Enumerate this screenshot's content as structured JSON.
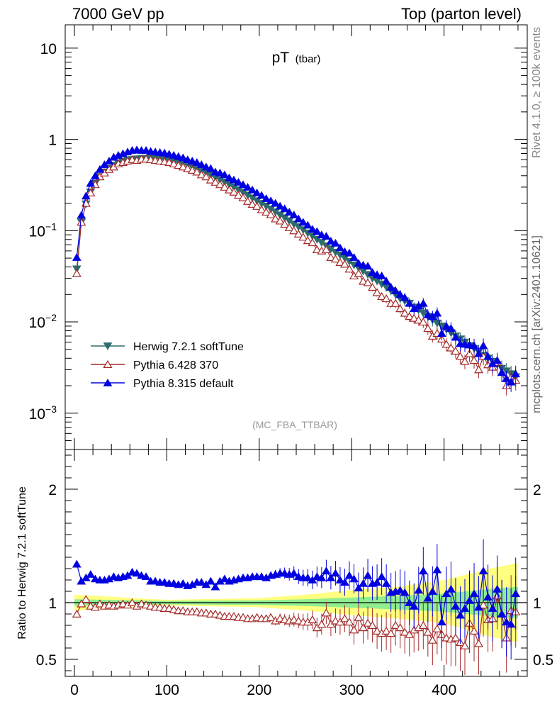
{
  "header": {
    "left": "7000 GeV pp",
    "right": "Top (parton level)"
  },
  "side_labels": {
    "rivet": "Rivet 4.1.0, ≥ 100k events",
    "mcplots": "mcplots.cern.ch [arXiv:2401.10621]"
  },
  "colors": {
    "herwig": "#2f6b6b",
    "pythia6": "#a52a2a",
    "pythia8": "#0000e0",
    "band_inner": "#90ee90",
    "band_outer": "#ffff80"
  },
  "chart_data": [
    {
      "type": "line",
      "panel": "main",
      "title": "pT",
      "title_sub": "(tbar)",
      "watermark": "(MC_FBA_TTBAR)",
      "yscale": "log",
      "ylim": [
        0.0004,
        18
      ],
      "xlim": [
        -10,
        490
      ],
      "ytick_labels": [
        {
          "value": 10,
          "base": "10",
          "exp": ""
        },
        {
          "value": 1,
          "base": "1",
          "exp": ""
        },
        {
          "value": 0.1,
          "base": "10",
          "exp": "−1"
        },
        {
          "value": 0.01,
          "base": "10",
          "exp": "−2"
        },
        {
          "value": 0.001,
          "base": "10",
          "exp": "−3"
        }
      ],
      "x": [
        2.5,
        7.5,
        12.5,
        17.5,
        22.5,
        27.5,
        32.5,
        37.5,
        42.5,
        47.5,
        52.5,
        57.5,
        62.5,
        67.5,
        72.5,
        77.5,
        82.5,
        87.5,
        92.5,
        97.5,
        102.5,
        107.5,
        112.5,
        117.5,
        122.5,
        127.5,
        132.5,
        137.5,
        142.5,
        147.5,
        152.5,
        157.5,
        162.5,
        167.5,
        172.5,
        177.5,
        182.5,
        187.5,
        192.5,
        197.5,
        202.5,
        207.5,
        212.5,
        217.5,
        222.5,
        227.5,
        232.5,
        237.5,
        242.5,
        247.5,
        252.5,
        257.5,
        262.5,
        267.5,
        272.5,
        277.5,
        282.5,
        287.5,
        292.5,
        297.5,
        302.5,
        307.5,
        312.5,
        317.5,
        322.5,
        327.5,
        332.5,
        337.5,
        342.5,
        347.5,
        352.5,
        357.5,
        362.5,
        367.5,
        372.5,
        377.5,
        382.5,
        387.5,
        392.5,
        397.5,
        402.5,
        407.5,
        412.5,
        417.5,
        422.5,
        427.5,
        432.5,
        437.5,
        442.5,
        447.5,
        452.5,
        457.5,
        462.5,
        467.5,
        472.5,
        477.5
      ],
      "series": [
        {
          "name": "Herwig 7.2.1 softTune",
          "marker": "triangle-down",
          "values": [
            0.038,
            0.124,
            0.196,
            0.265,
            0.33,
            0.39,
            0.44,
            0.48,
            0.52,
            0.55,
            0.57,
            0.59,
            0.6,
            0.61,
            0.615,
            0.62,
            0.62,
            0.615,
            0.61,
            0.6,
            0.59,
            0.575,
            0.56,
            0.54,
            0.52,
            0.5,
            0.475,
            0.45,
            0.43,
            0.405,
            0.385,
            0.36,
            0.34,
            0.32,
            0.3,
            0.28,
            0.263,
            0.245,
            0.228,
            0.212,
            0.198,
            0.185,
            0.172,
            0.16,
            0.148,
            0.138,
            0.128,
            0.118,
            0.11,
            0.102,
            0.094,
            0.087,
            0.08,
            0.074,
            0.068,
            0.063,
            0.058,
            0.054,
            0.05,
            0.046,
            0.042,
            0.039,
            0.036,
            0.033,
            0.03,
            0.028,
            0.026,
            0.024,
            0.022,
            0.02,
            0.018,
            0.017,
            0.016,
            0.0145,
            0.0135,
            0.0125,
            0.0115,
            0.0105,
            0.0097,
            0.009,
            0.0083,
            0.0076,
            0.007,
            0.0065,
            0.006,
            0.0055,
            0.0051,
            0.0047,
            0.0043,
            0.004,
            0.0037,
            0.0034,
            0.0031,
            0.0029,
            0.0027,
            0.0025
          ]
        },
        {
          "name": "Pythia 6.428 370",
          "marker": "triangle-up-open",
          "values": [
            0.034,
            0.124,
            0.2,
            0.26,
            0.32,
            0.39,
            0.43,
            0.47,
            0.5,
            0.54,
            0.56,
            0.58,
            0.6,
            0.59,
            0.61,
            0.61,
            0.6,
            0.59,
            0.58,
            0.57,
            0.56,
            0.54,
            0.52,
            0.5,
            0.48,
            0.46,
            0.44,
            0.41,
            0.39,
            0.36,
            0.34,
            0.32,
            0.3,
            0.28,
            0.265,
            0.245,
            0.23,
            0.21,
            0.195,
            0.185,
            0.17,
            0.16,
            0.15,
            0.135,
            0.128,
            0.118,
            0.108,
            0.1,
            0.092,
            0.085,
            0.078,
            0.074,
            0.062,
            0.06,
            0.062,
            0.051,
            0.049,
            0.045,
            0.043,
            0.038,
            0.032,
            0.034,
            0.028,
            0.027,
            0.024,
            0.021,
            0.019,
            0.018,
            0.016,
            0.016,
            0.014,
            0.0125,
            0.0115,
            0.011,
            0.0105,
            0.01,
            0.0085,
            0.007,
            0.0075,
            0.0065,
            0.0057,
            0.0052,
            0.0048,
            0.0042,
            0.0037,
            0.0045,
            0.0038,
            0.003,
            0.0042,
            0.0034,
            0.0032,
            0.0036,
            0.0028,
            0.002,
            0.0025,
            0.0023
          ]
        },
        {
          "name": "Pythia 8.315 default",
          "marker": "triangle-up",
          "values": [
            0.051,
            0.148,
            0.24,
            0.33,
            0.4,
            0.47,
            0.53,
            0.58,
            0.64,
            0.67,
            0.7,
            0.73,
            0.76,
            0.77,
            0.76,
            0.76,
            0.74,
            0.73,
            0.72,
            0.71,
            0.69,
            0.67,
            0.65,
            0.63,
            0.6,
            0.58,
            0.56,
            0.53,
            0.5,
            0.48,
            0.44,
            0.43,
            0.41,
            0.38,
            0.36,
            0.34,
            0.32,
            0.3,
            0.28,
            0.26,
            0.244,
            0.225,
            0.213,
            0.2,
            0.186,
            0.174,
            0.16,
            0.149,
            0.135,
            0.124,
            0.115,
            0.104,
            0.098,
            0.09,
            0.087,
            0.077,
            0.073,
            0.065,
            0.059,
            0.057,
            0.051,
            0.044,
            0.042,
            0.041,
            0.035,
            0.033,
            0.032,
            0.028,
            0.024,
            0.022,
            0.02,
            0.0185,
            0.016,
            0.014,
            0.015,
            0.016,
            0.012,
            0.0115,
            0.0125,
            0.0075,
            0.009,
            0.0085,
            0.0068,
            0.0058,
            0.0057,
            0.0056,
            0.0055,
            0.0045,
            0.0055,
            0.0042,
            0.0035,
            0.0038,
            0.0028,
            0.0024,
            0.0022,
            0.0027
          ]
        }
      ]
    },
    {
      "type": "line",
      "panel": "ratio",
      "ylabel": "Ratio to Herwig 7.2.1 softTune",
      "ylim": [
        0.35,
        2.35
      ],
      "xlim": [
        -10,
        490
      ],
      "xtick_labels": [
        "0",
        "100",
        "200",
        "300",
        "400"
      ],
      "ytick_labels": [
        "2",
        "1",
        "0.5"
      ],
      "reference_line": 1,
      "series": [
        {
          "name": "Pythia 6.428 370",
          "values": [
            0.9,
            0.99,
            1.03,
            0.97,
            0.96,
            0.99,
            0.97,
            0.98,
            0.97,
            0.98,
            0.99,
            0.98,
            1.0,
            0.97,
            0.99,
            0.98,
            0.97,
            0.96,
            0.96,
            0.95,
            0.95,
            0.94,
            0.93,
            0.93,
            0.92,
            0.92,
            0.92,
            0.91,
            0.91,
            0.9,
            0.9,
            0.89,
            0.88,
            0.88,
            0.88,
            0.87,
            0.87,
            0.86,
            0.86,
            0.87,
            0.86,
            0.86,
            0.87,
            0.84,
            0.86,
            0.85,
            0.84,
            0.85,
            0.84,
            0.83,
            0.83,
            0.85,
            0.78,
            0.81,
            0.91,
            0.81,
            0.84,
            0.83,
            0.86,
            0.83,
            0.76,
            0.87,
            0.78,
            0.82,
            0.8,
            0.75,
            0.73,
            0.75,
            0.73,
            0.8,
            0.78,
            0.74,
            0.72,
            0.76,
            0.78,
            0.8,
            0.74,
            0.67,
            0.77,
            0.72,
            0.69,
            0.68,
            0.69,
            0.65,
            0.62,
            0.82,
            0.75,
            0.64,
            0.98,
            0.85,
            0.86,
            1.06,
            0.9,
            0.69,
            0.93,
            0.92
          ]
        },
        {
          "name": "Pythia 8.315 default",
          "values": [
            1.34,
            1.19,
            1.22,
            1.25,
            1.21,
            1.2,
            1.2,
            1.21,
            1.23,
            1.22,
            1.23,
            1.24,
            1.27,
            1.26,
            1.24,
            1.23,
            1.19,
            1.19,
            1.18,
            1.18,
            1.17,
            1.17,
            1.16,
            1.17,
            1.15,
            1.16,
            1.18,
            1.18,
            1.16,
            1.19,
            1.14,
            1.19,
            1.21,
            1.19,
            1.2,
            1.21,
            1.22,
            1.22,
            1.23,
            1.23,
            1.23,
            1.22,
            1.24,
            1.25,
            1.26,
            1.26,
            1.25,
            1.26,
            1.23,
            1.22,
            1.22,
            1.2,
            1.23,
            1.22,
            1.28,
            1.22,
            1.26,
            1.2,
            1.18,
            1.24,
            1.21,
            1.13,
            1.17,
            1.24,
            1.17,
            1.18,
            1.23,
            1.17,
            1.09,
            1.1,
            1.11,
            1.09,
            1.0,
            0.97,
            1.11,
            1.28,
            1.04,
            1.1,
            1.29,
            0.83,
            1.08,
            1.12,
            0.97,
            0.89,
            0.95,
            1.02,
            1.08,
            0.96,
            1.28,
            1.05,
            0.95,
            1.12,
            0.9,
            0.83,
            0.81,
            1.08
          ]
        }
      ],
      "band_inner": {
        "x": [
          0,
          100,
          200,
          250,
          300,
          350,
          400,
          450,
          480
        ],
        "lower": [
          0.97,
          0.985,
          0.98,
          0.97,
          0.955,
          0.94,
          0.92,
          0.88,
          0.86
        ],
        "upper": [
          1.03,
          1.015,
          1.02,
          1.03,
          1.045,
          1.06,
          1.08,
          1.12,
          1.14
        ]
      },
      "band_outer": {
        "x": [
          0,
          100,
          200,
          250,
          300,
          350,
          400,
          450,
          480
        ],
        "lower": [
          0.93,
          0.975,
          0.96,
          0.93,
          0.89,
          0.86,
          0.82,
          0.7,
          0.65
        ],
        "upper": [
          1.07,
          1.025,
          1.04,
          1.07,
          1.11,
          1.14,
          1.2,
          1.3,
          1.35
        ]
      }
    }
  ]
}
